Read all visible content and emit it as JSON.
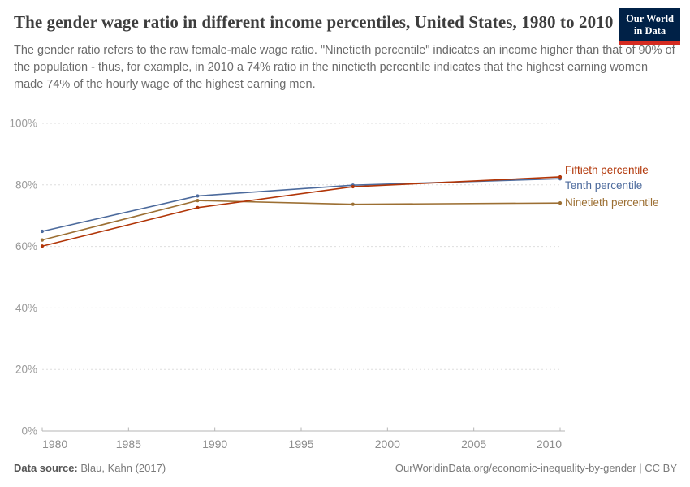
{
  "header": {
    "title": "The gender wage ratio in different income percentiles, United States, 1980 to 2010",
    "subtitle": "The gender ratio refers to the raw female-male wage ratio. \"Ninetieth percentile\" indicates an income higher than that of 90% of the population - thus, for example, in 2010 a 74% ratio in the ninetieth percentile indicates that the highest earning women made 74% of the hourly wage of the highest earning men.",
    "logo": {
      "line1": "Our World",
      "line2": "in Data",
      "bg_color": "#002147",
      "accent_color": "#d42b21"
    }
  },
  "chart_data": {
    "type": "line",
    "x": [
      1980,
      1989,
      1998,
      2010
    ],
    "series": [
      {
        "name": "Fiftieth percentile",
        "color": "#B13507",
        "values": [
          60.1,
          72.6,
          79.4,
          82.6
        ]
      },
      {
        "name": "Tenth percentile",
        "color": "#4C6A9C",
        "values": [
          64.9,
          76.4,
          79.9,
          82.0
        ]
      },
      {
        "name": "Ninetieth percentile",
        "color": "#9C6F33",
        "values": [
          62.1,
          74.9,
          73.7,
          74.1
        ]
      }
    ],
    "title": "The gender wage ratio in different income percentiles, United States, 1980 to 2010",
    "xlabel": "",
    "ylabel": "",
    "xlim": [
      1980,
      2010
    ],
    "ylim": [
      0,
      100
    ],
    "x_ticks": [
      1980,
      1985,
      1990,
      1995,
      2000,
      2005,
      2010
    ],
    "y_ticks": [
      0,
      20,
      40,
      60,
      80,
      100
    ],
    "y_tick_suffix": "%",
    "grid": "horizontal-dashed",
    "grid_color": "#dedede",
    "axis_color": "#b6b6b6",
    "tick_label_color": "#8c8c8c",
    "legend_position": "right"
  },
  "footer": {
    "source_label": "Data source:",
    "source_value": "Blau, Kahn (2017)",
    "credit": "OurWorldinData.org/economic-inequality-by-gender | CC BY"
  }
}
